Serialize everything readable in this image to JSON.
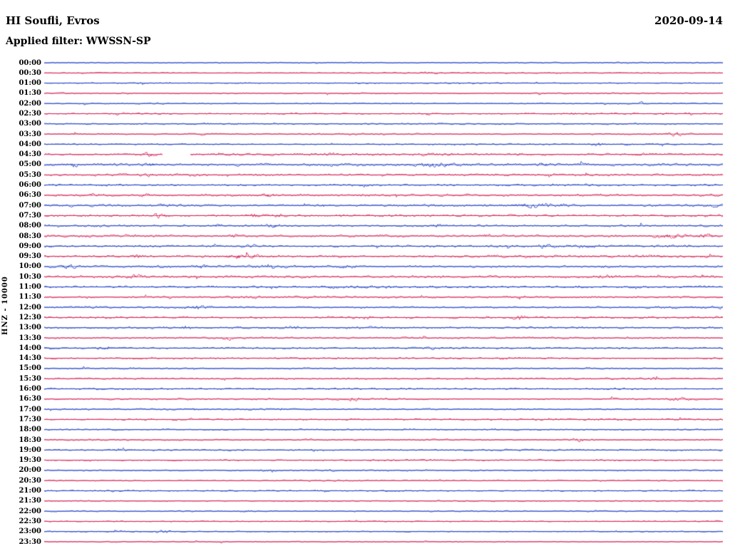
{
  "header": {
    "station_title": "HI Soufli, Evros",
    "date": "2020-09-14",
    "filter_label": "Applied filter: WWSSN-SP"
  },
  "axis": {
    "y_label": "HNZ - 10000"
  },
  "chart_data": {
    "type": "line",
    "title": "HI Soufli, Evros",
    "subtitle": "Applied filter: WWSSN-SP",
    "date": "2020-09-14",
    "ylabel": "HNZ - 10000",
    "description": "24-hour helicorder seismogram: 48 horizontal traces of 30 minutes each, alternating blue (even rows) and red (odd rows), continuous seismic background noise with intermittent event bursts; one short data gap in the 04:30 trace.",
    "minutes_per_row": 30,
    "n_rows": 48,
    "colors": {
      "blue": "#1535c3",
      "red": "#d4164e"
    },
    "rows": [
      {
        "label": "00:00",
        "color": "blue",
        "noise": 1.1
      },
      {
        "label": "00:30",
        "color": "red",
        "noise": 1.1
      },
      {
        "label": "01:00",
        "color": "blue",
        "noise": 1.1
      },
      {
        "label": "01:30",
        "color": "red",
        "noise": 1.15
      },
      {
        "label": "02:00",
        "color": "blue",
        "noise": 1.3
      },
      {
        "label": "02:30",
        "color": "red",
        "noise": 1.35
      },
      {
        "label": "03:00",
        "color": "blue",
        "noise": 1.3
      },
      {
        "label": "03:30",
        "color": "red",
        "noise": 1.35
      },
      {
        "label": "04:00",
        "color": "blue",
        "noise": 1.35
      },
      {
        "label": "04:30",
        "color": "red",
        "noise": 1.9
      },
      {
        "label": "05:00",
        "color": "blue",
        "noise": 2.4
      },
      {
        "label": "05:30",
        "color": "red",
        "noise": 1.9
      },
      {
        "label": "06:00",
        "color": "blue",
        "noise": 1.8
      },
      {
        "label": "06:30",
        "color": "red",
        "noise": 2.0
      },
      {
        "label": "07:00",
        "color": "blue",
        "noise": 2.2
      },
      {
        "label": "07:30",
        "color": "red",
        "noise": 2.1
      },
      {
        "label": "08:00",
        "color": "blue",
        "noise": 2.0
      },
      {
        "label": "08:30",
        "color": "red",
        "noise": 2.2
      },
      {
        "label": "09:00",
        "color": "blue",
        "noise": 2.0
      },
      {
        "label": "09:30",
        "color": "red",
        "noise": 2.2
      },
      {
        "label": "10:00",
        "color": "blue",
        "noise": 2.2
      },
      {
        "label": "10:30",
        "color": "red",
        "noise": 2.1
      },
      {
        "label": "11:00",
        "color": "blue",
        "noise": 1.9
      },
      {
        "label": "11:30",
        "color": "red",
        "noise": 1.9
      },
      {
        "label": "12:00",
        "color": "blue",
        "noise": 1.8
      },
      {
        "label": "12:30",
        "color": "red",
        "noise": 1.8
      },
      {
        "label": "13:00",
        "color": "blue",
        "noise": 1.8
      },
      {
        "label": "13:30",
        "color": "red",
        "noise": 1.8
      },
      {
        "label": "14:00",
        "color": "blue",
        "noise": 1.6
      },
      {
        "label": "14:30",
        "color": "red",
        "noise": 1.5
      },
      {
        "label": "15:00",
        "color": "blue",
        "noise": 1.5
      },
      {
        "label": "15:30",
        "color": "red",
        "noise": 1.5
      },
      {
        "label": "16:00",
        "color": "blue",
        "noise": 1.5
      },
      {
        "label": "16:30",
        "color": "red",
        "noise": 1.6
      },
      {
        "label": "17:00",
        "color": "blue",
        "noise": 1.4
      },
      {
        "label": "17:30",
        "color": "red",
        "noise": 1.4
      },
      {
        "label": "18:00",
        "color": "blue",
        "noise": 1.35
      },
      {
        "label": "18:30",
        "color": "red",
        "noise": 1.4
      },
      {
        "label": "19:00",
        "color": "blue",
        "noise": 1.4
      },
      {
        "label": "19:30",
        "color": "red",
        "noise": 1.3
      },
      {
        "label": "20:00",
        "color": "blue",
        "noise": 1.3
      },
      {
        "label": "20:30",
        "color": "red",
        "noise": 1.2
      },
      {
        "label": "21:00",
        "color": "blue",
        "noise": 1.25
      },
      {
        "label": "21:30",
        "color": "red",
        "noise": 1.1
      },
      {
        "label": "22:00",
        "color": "blue",
        "noise": 1.15
      },
      {
        "label": "22:30",
        "color": "red",
        "noise": 1.0
      },
      {
        "label": "23:00",
        "color": "blue",
        "noise": 1.1
      },
      {
        "label": "23:30",
        "color": "red",
        "noise": 1.0
      }
    ],
    "events": [
      {
        "row": 1,
        "pos": 0.57,
        "amp": 1.5,
        "w": 0.01
      },
      {
        "row": 3,
        "pos": 0.12,
        "amp": 1.5,
        "w": 0.008
      },
      {
        "row": 4,
        "pos": 0.88,
        "amp": 1.6,
        "w": 0.008
      },
      {
        "row": 5,
        "pos": 0.565,
        "amp": 3,
        "w": 0.006
      },
      {
        "row": 5,
        "pos": 0.78,
        "amp": 2.8,
        "w": 0.006
      },
      {
        "row": 5,
        "pos": 0.95,
        "amp": 2.2,
        "w": 0.005
      },
      {
        "row": 6,
        "pos": 0.53,
        "amp": 1.5,
        "w": 0.008
      },
      {
        "row": 7,
        "pos": 0.235,
        "amp": 2,
        "w": 0.006
      },
      {
        "row": 7,
        "pos": 0.93,
        "amp": 3.2,
        "w": 0.012
      },
      {
        "row": 8,
        "pos": 0.815,
        "amp": 3.4,
        "w": 0.008
      },
      {
        "row": 9,
        "pos": 0.155,
        "amp": 4,
        "w": 0.008
      },
      {
        "row": 9,
        "pos": 0.42,
        "amp": 2,
        "w": 0.01
      },
      {
        "row": 9,
        "pos": 0.7,
        "amp": 1.8,
        "w": 0.008
      },
      {
        "row": 9,
        "pos": 0.88,
        "amp": 2,
        "w": 0.01
      },
      {
        "row": 10,
        "pos": 0.04,
        "amp": 2.8,
        "w": 0.01
      },
      {
        "row": 10,
        "pos": 0.155,
        "amp": 3.2,
        "w": 0.008
      },
      {
        "row": 10,
        "pos": 0.57,
        "amp": 2.6,
        "w": 0.03
      },
      {
        "row": 10,
        "pos": 0.74,
        "amp": 2.4,
        "w": 0.012
      },
      {
        "row": 11,
        "pos": 0.155,
        "amp": 2.4,
        "w": 0.006
      },
      {
        "row": 12,
        "pos": 0.47,
        "amp": 2,
        "w": 0.015
      },
      {
        "row": 13,
        "pos": 0.145,
        "amp": 2.8,
        "w": 0.008
      },
      {
        "row": 13,
        "pos": 0.33,
        "amp": 3.2,
        "w": 0.01
      },
      {
        "row": 14,
        "pos": 0.175,
        "amp": 2.4,
        "w": 0.008
      },
      {
        "row": 14,
        "pos": 0.715,
        "amp": 6.5,
        "w": 0.012
      },
      {
        "row": 14,
        "pos": 0.75,
        "amp": 2.4,
        "w": 0.03
      },
      {
        "row": 14,
        "pos": 0.99,
        "amp": 2.8,
        "w": 0.008
      },
      {
        "row": 15,
        "pos": 0.17,
        "amp": 4.2,
        "w": 0.008
      },
      {
        "row": 15,
        "pos": 0.31,
        "amp": 3.2,
        "w": 0.01
      },
      {
        "row": 15,
        "pos": 0.345,
        "amp": 2.4,
        "w": 0.008
      },
      {
        "row": 16,
        "pos": 0.255,
        "amp": 2.4,
        "w": 0.008
      },
      {
        "row": 16,
        "pos": 0.335,
        "amp": 3.2,
        "w": 0.012
      },
      {
        "row": 16,
        "pos": 0.575,
        "amp": 2.4,
        "w": 0.01
      },
      {
        "row": 17,
        "pos": 0.28,
        "amp": 2.4,
        "w": 0.01
      },
      {
        "row": 17,
        "pos": 0.655,
        "amp": 2.4,
        "w": 0.008
      },
      {
        "row": 17,
        "pos": 0.92,
        "amp": 3.2,
        "w": 0.02
      },
      {
        "row": 17,
        "pos": 0.975,
        "amp": 3.2,
        "w": 0.012
      },
      {
        "row": 18,
        "pos": 0.31,
        "amp": 2,
        "w": 0.01
      },
      {
        "row": 18,
        "pos": 0.74,
        "amp": 2.4,
        "w": 0.015
      },
      {
        "row": 18,
        "pos": 0.8,
        "amp": 2.4,
        "w": 0.012
      },
      {
        "row": 19,
        "pos": 0.14,
        "amp": 3.8,
        "w": 0.008
      },
      {
        "row": 19,
        "pos": 0.285,
        "amp": 4.2,
        "w": 0.012
      },
      {
        "row": 19,
        "pos": 0.31,
        "amp": 3.2,
        "w": 0.008
      },
      {
        "row": 19,
        "pos": 0.43,
        "amp": 2,
        "w": 0.008
      },
      {
        "row": 20,
        "pos": 0.035,
        "amp": 2.8,
        "w": 0.008
      },
      {
        "row": 20,
        "pos": 0.23,
        "amp": 2.8,
        "w": 0.008
      },
      {
        "row": 20,
        "pos": 0.445,
        "amp": 3.4,
        "w": 0.012
      },
      {
        "row": 21,
        "pos": 0.135,
        "amp": 2.4,
        "w": 0.01
      },
      {
        "row": 21,
        "pos": 0.545,
        "amp": 2,
        "w": 0.008
      },
      {
        "row": 21,
        "pos": 0.83,
        "amp": 2.4,
        "w": 0.015
      },
      {
        "row": 21,
        "pos": 0.97,
        "amp": 2.8,
        "w": 0.01
      },
      {
        "row": 22,
        "pos": 0.51,
        "amp": 2,
        "w": 0.01
      },
      {
        "row": 23,
        "pos": 0.065,
        "amp": 2.4,
        "w": 0.006
      },
      {
        "row": 23,
        "pos": 0.185,
        "amp": 2.4,
        "w": 0.006
      },
      {
        "row": 24,
        "pos": 0.225,
        "amp": 3.4,
        "w": 0.015
      },
      {
        "row": 25,
        "pos": 0.475,
        "amp": 2,
        "w": 0.008
      },
      {
        "row": 25,
        "pos": 0.7,
        "amp": 3.2,
        "w": 0.012
      },
      {
        "row": 26,
        "pos": 0.21,
        "amp": 2.4,
        "w": 0.008
      },
      {
        "row": 26,
        "pos": 0.365,
        "amp": 2.8,
        "w": 0.012
      },
      {
        "row": 27,
        "pos": 0.27,
        "amp": 3.4,
        "w": 0.008
      },
      {
        "row": 28,
        "pos": 0.085,
        "amp": 2.4,
        "w": 0.01
      },
      {
        "row": 28,
        "pos": 0.565,
        "amp": 2,
        "w": 0.008
      },
      {
        "row": 28,
        "pos": 0.615,
        "amp": 2.4,
        "w": 0.008
      },
      {
        "row": 29,
        "pos": 0.675,
        "amp": 1.8,
        "w": 0.008
      },
      {
        "row": 31,
        "pos": 0.895,
        "amp": 1.8,
        "w": 0.01
      },
      {
        "row": 33,
        "pos": 0.455,
        "amp": 3.4,
        "w": 0.012
      },
      {
        "row": 33,
        "pos": 0.935,
        "amp": 2.4,
        "w": 0.02
      },
      {
        "row": 36,
        "pos": 0.175,
        "amp": 1.8,
        "w": 0.008
      },
      {
        "row": 37,
        "pos": 0.79,
        "amp": 2.8,
        "w": 0.012
      },
      {
        "row": 38,
        "pos": 0.115,
        "amp": 2.8,
        "w": 0.01
      },
      {
        "row": 38,
        "pos": 0.4,
        "amp": 2,
        "w": 0.008
      },
      {
        "row": 40,
        "pos": 0.33,
        "amp": 3.2,
        "w": 0.012
      },
      {
        "row": 40,
        "pos": 0.42,
        "amp": 2,
        "w": 0.008
      },
      {
        "row": 42,
        "pos": 0.41,
        "amp": 2,
        "w": 0.01
      },
      {
        "row": 42,
        "pos": 0.955,
        "amp": 2,
        "w": 0.008
      },
      {
        "row": 44,
        "pos": 0.3,
        "amp": 1.8,
        "w": 0.008
      },
      {
        "row": 46,
        "pos": 0.175,
        "amp": 2.4,
        "w": 0.01
      }
    ],
    "gaps": [
      {
        "row": 9,
        "start": 0.175,
        "end": 0.215
      }
    ]
  }
}
